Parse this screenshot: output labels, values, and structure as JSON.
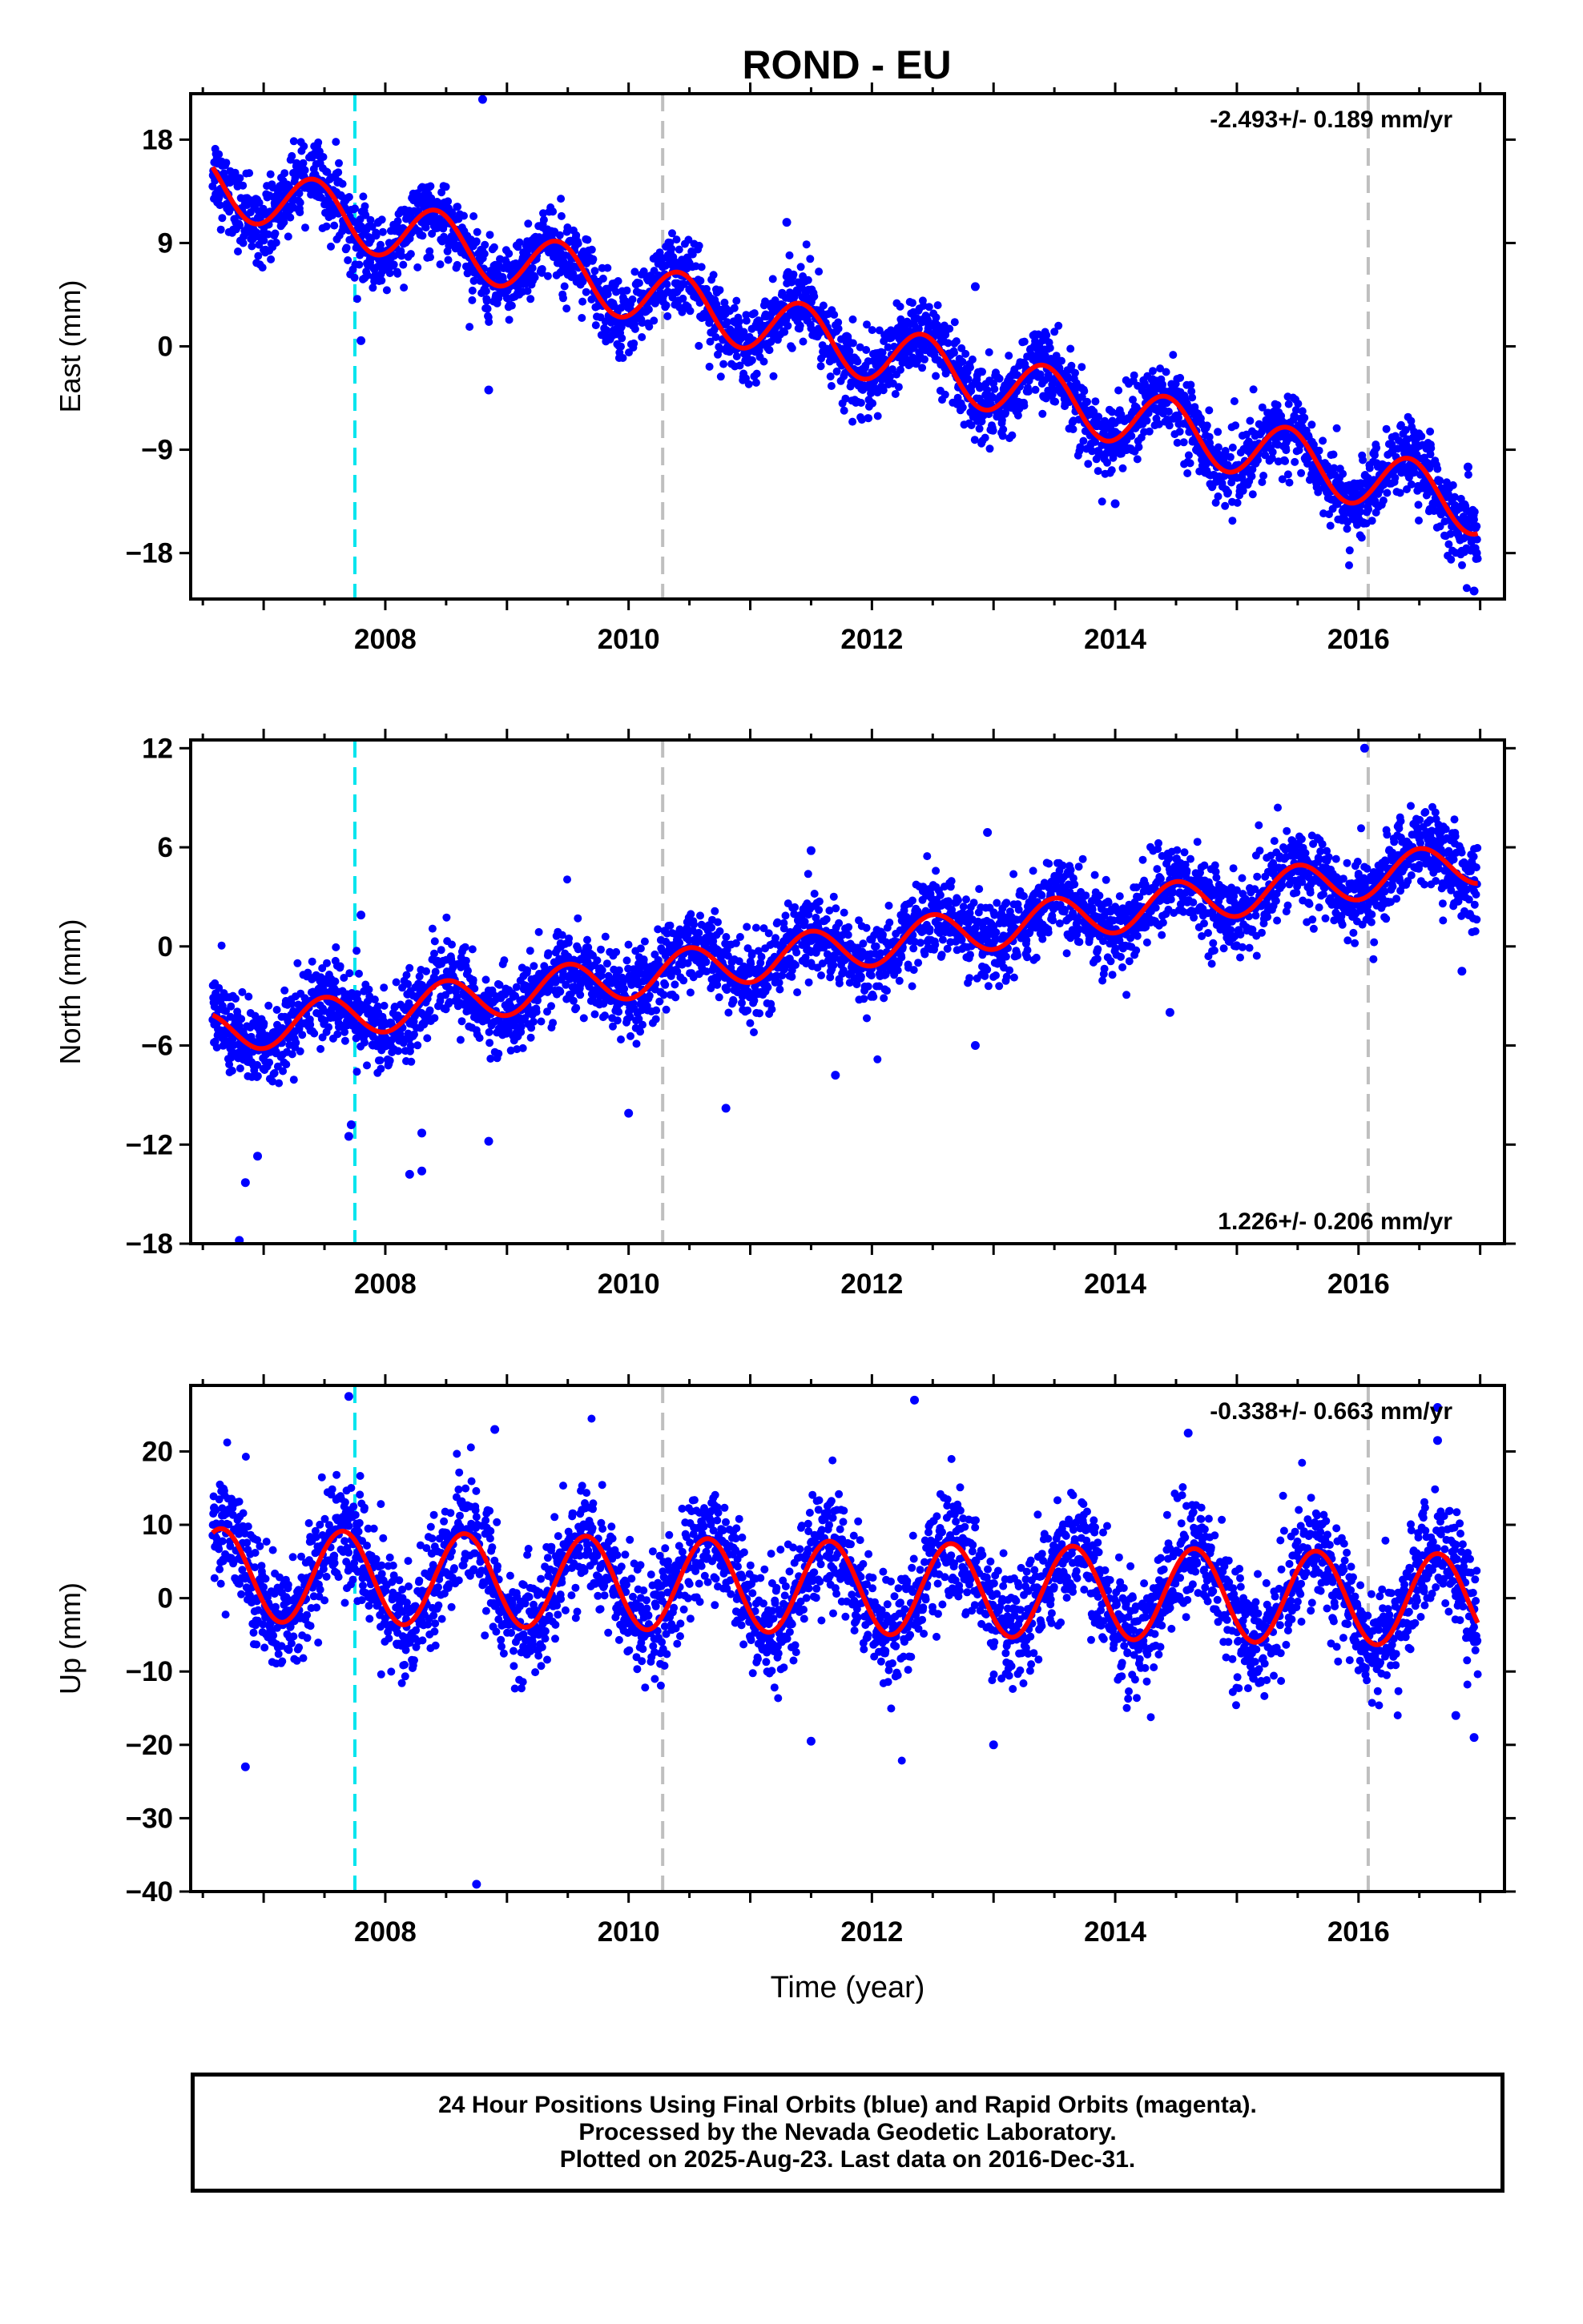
{
  "title": "ROND - EU",
  "footer": {
    "lines": [
      "24 Hour Positions Using Final Orbits (blue) and Rapid Orbits (magenta).",
      "Processed by the Nevada Geodetic Laboratory.",
      "Plotted on 2025-Aug-23. Last data on 2016-Dec-31."
    ]
  },
  "chart_data": [
    {
      "type": "scatter",
      "ylabel": "East (mm)",
      "xlabel": "",
      "xlim": [
        2006.4,
        2017.2
      ],
      "ylim": [
        -22,
        22
      ],
      "yticks": [
        -18,
        -9,
        0,
        9,
        18
      ],
      "xticks": [
        2008,
        2010,
        2012,
        2014,
        2016
      ],
      "rate_text": "-2.493+/- 0.189 mm/yr",
      "rate_position": "top-right",
      "grid": false,
      "colors": {
        "points": "#0000ff",
        "model": "#ff0000",
        "break_cyan": "#00e5ee",
        "break_gray": "#bfbfbf"
      },
      "vlines": [
        {
          "x": 2007.75,
          "color": "#00e5ee"
        },
        {
          "x": 2010.28,
          "color": "#bfbfbf"
        },
        {
          "x": 2016.08,
          "color": "#bfbfbf"
        }
      ],
      "model": {
        "start": 2006.58,
        "end": 2016.98,
        "intercept": 14.2,
        "slope": -2.7,
        "seasonal_amplitude": 2.6,
        "peak_phase": 0.42,
        "residual_scatter": 1.6
      },
      "sample_points": [
        {
          "x": 2006.6,
          "y": 14.5
        },
        {
          "x": 2007.0,
          "y": 10.0
        },
        {
          "x": 2007.45,
          "y": 13.0
        },
        {
          "x": 2008.0,
          "y": 7.0
        },
        {
          "x": 2008.4,
          "y": 10.5
        },
        {
          "x": 2009.0,
          "y": 4.2
        },
        {
          "x": 2009.45,
          "y": 8.0
        },
        {
          "x": 2010.0,
          "y": 2.0
        },
        {
          "x": 2010.4,
          "y": 5.5
        },
        {
          "x": 2011.0,
          "y": -0.4
        },
        {
          "x": 2011.4,
          "y": 3.0
        },
        {
          "x": 2012.0,
          "y": -3.0
        },
        {
          "x": 2012.4,
          "y": 0.7
        },
        {
          "x": 2013.0,
          "y": -5.5
        },
        {
          "x": 2013.4,
          "y": -1.5
        },
        {
          "x": 2014.0,
          "y": -8.0
        },
        {
          "x": 2014.4,
          "y": -4.0
        },
        {
          "x": 2015.0,
          "y": -10.6
        },
        {
          "x": 2015.4,
          "y": -6.8
        },
        {
          "x": 2016.0,
          "y": -13.0
        },
        {
          "x": 2016.45,
          "y": -9.0
        },
        {
          "x": 2016.95,
          "y": -15.6
        }
      ],
      "outliers": [
        {
          "x": 2008.8,
          "y": 21.5
        },
        {
          "x": 2007.8,
          "y": 0.5
        },
        {
          "x": 2008.85,
          "y": -3.8
        },
        {
          "x": 2011.3,
          "y": 10.8
        },
        {
          "x": 2012.85,
          "y": 5.2
        },
        {
          "x": 2014.0,
          "y": -13.7
        },
        {
          "x": 2016.95,
          "y": -21.3
        },
        {
          "x": 2016.97,
          "y": -18.0
        },
        {
          "x": 2016.9,
          "y": -10.5
        }
      ]
    },
    {
      "type": "scatter",
      "ylabel": "North (mm)",
      "xlabel": "",
      "xlim": [
        2006.4,
        2017.2
      ],
      "ylim": [
        -18,
        12.5
      ],
      "yticks": [
        -18,
        -12,
        -6,
        0,
        6,
        12
      ],
      "xticks": [
        2008,
        2010,
        2012,
        2014,
        2016
      ],
      "rate_text": "1.226+/- 0.206 mm/yr",
      "rate_position": "bottom-right",
      "grid": false,
      "colors": {
        "points": "#0000ff",
        "model": "#ff0000",
        "break_cyan": "#00e5ee",
        "break_gray": "#bfbfbf"
      },
      "vlines": [
        {
          "x": 2007.75,
          "color": "#00e5ee"
        },
        {
          "x": 2010.28,
          "color": "#bfbfbf"
        },
        {
          "x": 2016.08,
          "color": "#bfbfbf"
        }
      ],
      "model": {
        "start": 2006.58,
        "end": 2016.98,
        "intercept": -5.3,
        "slope": 1.0,
        "seasonal_amplitude": 1.3,
        "peak_phase": 0.5,
        "residual_scatter": 1.2
      },
      "sample_points": [
        {
          "x": 2006.6,
          "y": -4.2
        },
        {
          "x": 2006.9,
          "y": -7.0
        },
        {
          "x": 2007.5,
          "y": -3.0
        },
        {
          "x": 2008.0,
          "y": -5.5
        },
        {
          "x": 2008.5,
          "y": -2.4
        },
        {
          "x": 2009.0,
          "y": -4.2
        },
        {
          "x": 2009.5,
          "y": -1.2
        },
        {
          "x": 2010.0,
          "y": -2.0
        },
        {
          "x": 2010.5,
          "y": -0.3
        },
        {
          "x": 2011.0,
          "y": -1.4
        },
        {
          "x": 2011.5,
          "y": 1.0
        },
        {
          "x": 2012.0,
          "y": 0.4
        },
        {
          "x": 2012.5,
          "y": 2.0
        },
        {
          "x": 2013.0,
          "y": 1.2
        },
        {
          "x": 2013.5,
          "y": 3.5
        },
        {
          "x": 2014.0,
          "y": 2.4
        },
        {
          "x": 2014.5,
          "y": 4.5
        },
        {
          "x": 2015.0,
          "y": 3.4
        },
        {
          "x": 2015.5,
          "y": 5.7
        },
        {
          "x": 2016.0,
          "y": 4.4
        },
        {
          "x": 2016.5,
          "y": 6.5
        },
        {
          "x": 2016.95,
          "y": 5.9
        }
      ],
      "outliers": [
        {
          "x": 2006.8,
          "y": -17.8
        },
        {
          "x": 2006.85,
          "y": -14.3
        },
        {
          "x": 2006.95,
          "y": -12.7
        },
        {
          "x": 2007.7,
          "y": -11.5
        },
        {
          "x": 2007.72,
          "y": -10.8
        },
        {
          "x": 2007.8,
          "y": 1.9
        },
        {
          "x": 2008.2,
          "y": -13.8
        },
        {
          "x": 2008.3,
          "y": -13.6
        },
        {
          "x": 2008.3,
          "y": -11.3
        },
        {
          "x": 2008.85,
          "y": -11.8
        },
        {
          "x": 2010.0,
          "y": -10.1
        },
        {
          "x": 2010.8,
          "y": -9.8
        },
        {
          "x": 2011.5,
          "y": 5.8
        },
        {
          "x": 2011.7,
          "y": -7.8
        },
        {
          "x": 2012.85,
          "y": -6.0
        },
        {
          "x": 2012.95,
          "y": 6.9
        },
        {
          "x": 2014.45,
          "y": -4.0
        },
        {
          "x": 2016.05,
          "y": 12.0
        },
        {
          "x": 2016.85,
          "y": -1.5
        }
      ]
    },
    {
      "type": "scatter",
      "ylabel": "Up (mm)",
      "xlabel": "Time (year)",
      "xlim": [
        2006.4,
        2017.2
      ],
      "ylim": [
        -40,
        29
      ],
      "yticks": [
        -40,
        -30,
        -20,
        -10,
        0,
        10,
        20
      ],
      "xticks": [
        2008,
        2010,
        2012,
        2014,
        2016
      ],
      "rate_text": "-0.338+/- 0.663 mm/yr",
      "rate_position": "top-right",
      "grid": false,
      "colors": {
        "points": "#0000ff",
        "model": "#ff0000",
        "break_cyan": "#00e5ee",
        "break_gray": "#bfbfbf"
      },
      "vlines": [
        {
          "x": 2007.75,
          "color": "#00e5ee"
        },
        {
          "x": 2010.28,
          "color": "#bfbfbf"
        },
        {
          "x": 2016.08,
          "color": "#bfbfbf"
        }
      ],
      "model": {
        "start": 2006.58,
        "end": 2016.98,
        "intercept": 3.2,
        "slope": -0.34,
        "seasonal_amplitude": 6.3,
        "peak_phase": 0.65,
        "residual_scatter": 3.8
      },
      "sample_points": [
        {
          "x": 2006.6,
          "y": 8.5
        },
        {
          "x": 2007.1,
          "y": -3.0
        },
        {
          "x": 2007.65,
          "y": 9.5
        },
        {
          "x": 2008.1,
          "y": -3.5
        },
        {
          "x": 2008.65,
          "y": 8.5
        },
        {
          "x": 2009.1,
          "y": -4.0
        },
        {
          "x": 2009.65,
          "y": 8.0
        },
        {
          "x": 2010.1,
          "y": -4.0
        },
        {
          "x": 2010.65,
          "y": 5.5
        },
        {
          "x": 2011.1,
          "y": -7.0
        },
        {
          "x": 2011.65,
          "y": 5.5
        },
        {
          "x": 2012.1,
          "y": -7.5
        },
        {
          "x": 2012.65,
          "y": 5.0
        },
        {
          "x": 2013.1,
          "y": -7.5
        },
        {
          "x": 2013.65,
          "y": 4.8
        },
        {
          "x": 2014.1,
          "y": -7.5
        },
        {
          "x": 2014.65,
          "y": 4.5
        },
        {
          "x": 2015.1,
          "y": -8.0
        },
        {
          "x": 2015.65,
          "y": 4.0
        },
        {
          "x": 2016.1,
          "y": -8.0
        },
        {
          "x": 2016.65,
          "y": 5.5
        },
        {
          "x": 2016.95,
          "y": -6.0
        }
      ],
      "outliers": [
        {
          "x": 2006.85,
          "y": -23.0
        },
        {
          "x": 2007.7,
          "y": 27.5
        },
        {
          "x": 2008.75,
          "y": -39.0
        },
        {
          "x": 2008.9,
          "y": 23.0
        },
        {
          "x": 2012.35,
          "y": 27.0
        },
        {
          "x": 2014.6,
          "y": 22.5
        },
        {
          "x": 2016.65,
          "y": 26.0
        },
        {
          "x": 2016.65,
          "y": 21.5
        },
        {
          "x": 2016.95,
          "y": -19.0
        },
        {
          "x": 2013.0,
          "y": -20.0
        },
        {
          "x": 2011.5,
          "y": -19.5
        },
        {
          "x": 2016.8,
          "y": -16.0
        }
      ]
    }
  ]
}
